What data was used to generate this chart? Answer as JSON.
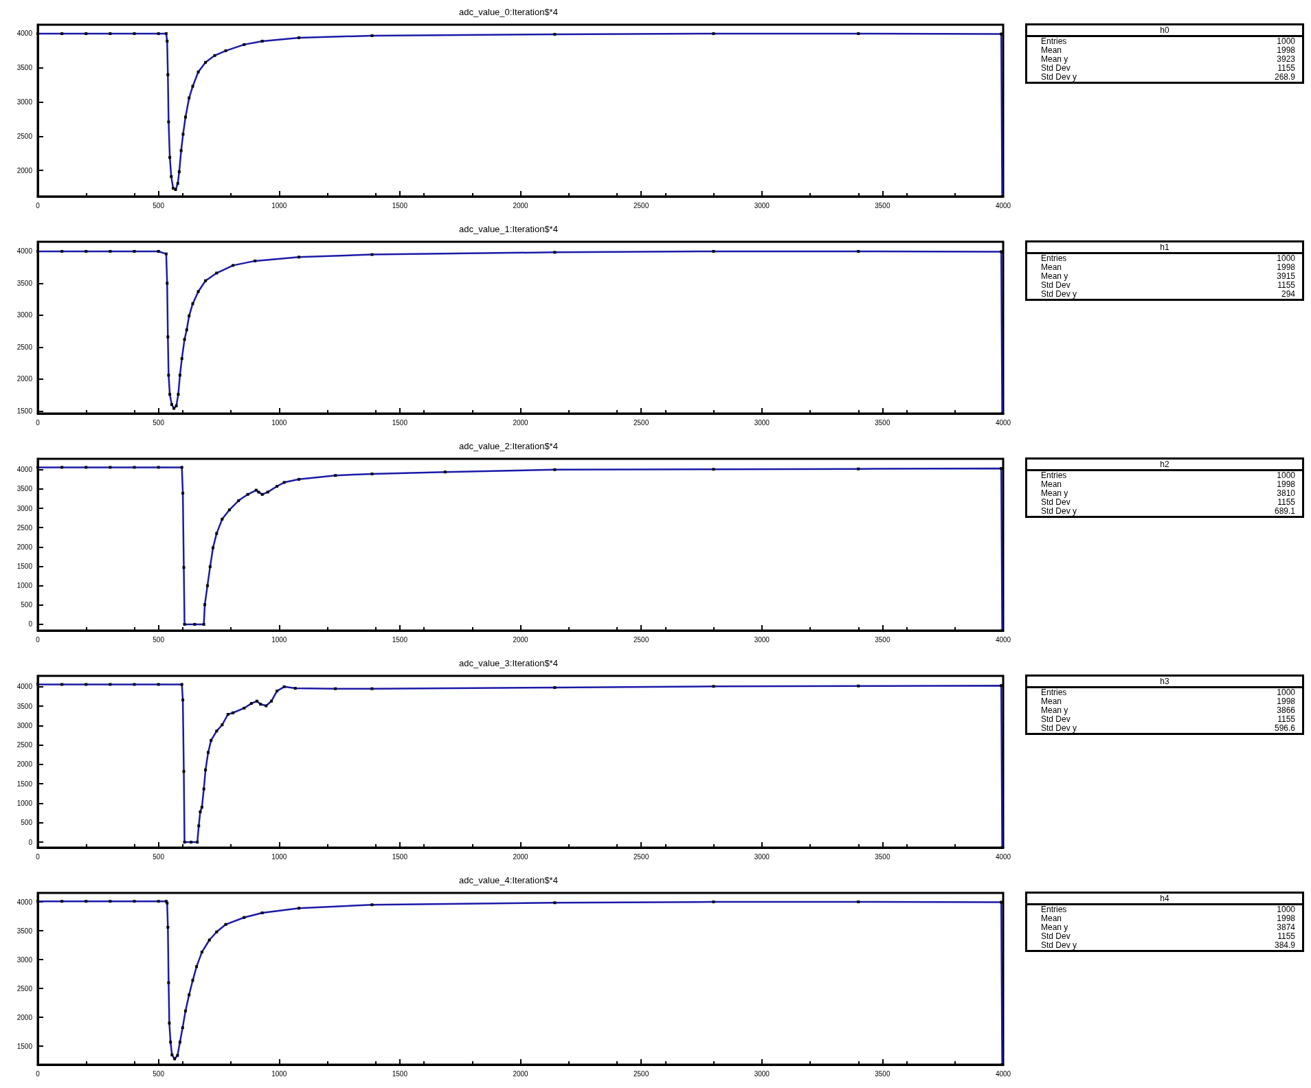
{
  "chart_data": [
    {
      "type": "line",
      "title": "adc_value_0:Iteration$*4",
      "xlim": [
        0,
        4000
      ],
      "xticks": [
        0,
        500,
        1000,
        1500,
        2000,
        2500,
        3000,
        3500,
        4000
      ],
      "ylim": [
        1620,
        4130
      ],
      "yticks": [
        2000,
        2500,
        3000,
        3500,
        4000
      ],
      "color": "#1a1aa8",
      "marker": "square",
      "line_style": "solid",
      "x": [
        0,
        100,
        200,
        300,
        400,
        500,
        532,
        536,
        539,
        542,
        547,
        553,
        561,
        571,
        580,
        586,
        594,
        602,
        612,
        627,
        642,
        665,
        695,
        733,
        779,
        855,
        930,
        1082,
        1385,
        2142,
        2800,
        3400,
        3992,
        3996
      ],
      "values": [
        4000,
        4000,
        4000,
        4000,
        4000,
        4000,
        4000,
        3890,
        3400,
        2710,
        2190,
        1910,
        1740,
        1720,
        1810,
        1980,
        2290,
        2530,
        2780,
        3060,
        3230,
        3440,
        3580,
        3680,
        3750,
        3840,
        3890,
        3940,
        3970,
        3990,
        4000,
        4000,
        3995,
        1620
      ],
      "annotations": [
        "h0",
        "Entries",
        "1000",
        "Mean",
        "1998",
        "Mean y",
        "3923",
        "Std Dev",
        "1155",
        "Std Dev y",
        "268.9"
      ]
    },
    {
      "type": "line",
      "title": "adc_value_1:Iteration$*4",
      "xlim": [
        0,
        4000
      ],
      "xticks": [
        0,
        500,
        1000,
        1500,
        2000,
        2500,
        3000,
        3500,
        4000
      ],
      "ylim": [
        1460,
        4150
      ],
      "yticks": [
        1500,
        2000,
        2500,
        3000,
        3500,
        4000
      ],
      "color": "#1a1aa8",
      "marker": "square",
      "line_style": "solid",
      "x": [
        0,
        100,
        200,
        300,
        400,
        500,
        532,
        536,
        539,
        542,
        547,
        555,
        564,
        574,
        582,
        589,
        597,
        608,
        617,
        627,
        642,
        665,
        695,
        741,
        809,
        900,
        1082,
        1385,
        2142,
        2800,
        3400,
        3992,
        3996
      ],
      "values": [
        4000,
        4000,
        4000,
        4000,
        4000,
        4000,
        3960,
        3500,
        2660,
        2060,
        1760,
        1600,
        1540,
        1580,
        1760,
        2060,
        2320,
        2620,
        2770,
        2990,
        3180,
        3370,
        3540,
        3660,
        3780,
        3850,
        3910,
        3950,
        3985,
        4000,
        4000,
        3995,
        1460
      ],
      "annotations": [
        "h1",
        "Entries",
        "1000",
        "Mean",
        "1998",
        "Mean y",
        "3915",
        "Std Dev",
        "1155",
        "Std Dev y",
        "294"
      ]
    },
    {
      "type": "line",
      "title": "adc_value_2:Iteration$*4",
      "xlim": [
        0,
        4000
      ],
      "xticks": [
        0,
        500,
        1000,
        1500,
        2000,
        2500,
        3000,
        3500,
        4000
      ],
      "ylim": [
        -160,
        4280
      ],
      "yticks": [
        0,
        500,
        1000,
        1500,
        2000,
        2500,
        3000,
        3500,
        4000
      ],
      "color": "#1a1aa8",
      "marker": "square",
      "line_style": "solid",
      "x": [
        0,
        100,
        200,
        300,
        400,
        500,
        597,
        601,
        605,
        608,
        650,
        688,
        692,
        703,
        714,
        726,
        741,
        764,
        794,
        832,
        870,
        905,
        915,
        930,
        953,
        991,
        1021,
        1082,
        1233,
        1385,
        1688,
        2142,
        2800,
        3400,
        3992,
        3996
      ],
      "values": [
        4060,
        4060,
        4060,
        4060,
        4060,
        4060,
        4060,
        3390,
        1470,
        0,
        0,
        0,
        510,
        1000,
        1490,
        1980,
        2350,
        2720,
        2960,
        3200,
        3360,
        3470,
        3420,
        3360,
        3420,
        3570,
        3670,
        3750,
        3850,
        3890,
        3940,
        4000,
        4010,
        4020,
        4030,
        -160
      ],
      "annotations": [
        "h2",
        "Entries",
        "1000",
        "Mean",
        "1998",
        "Mean y",
        "3810",
        "Std Dev",
        "1155",
        "Std Dev y",
        "689.1"
      ]
    },
    {
      "type": "line",
      "title": "adc_value_3:Iteration$*4",
      "xlim": [
        0,
        4000
      ],
      "xticks": [
        0,
        500,
        1000,
        1500,
        2000,
        2500,
        3000,
        3500,
        4000
      ],
      "ylim": [
        -140,
        4280
      ],
      "yticks": [
        0,
        500,
        1000,
        1500,
        2000,
        2500,
        3000,
        3500,
        4000
      ],
      "color": "#1a1aa8",
      "marker": "square",
      "line_style": "solid",
      "x": [
        0,
        100,
        200,
        300,
        400,
        500,
        597,
        601,
        605,
        608,
        635,
        661,
        667,
        673,
        680,
        688,
        695,
        706,
        718,
        741,
        764,
        788,
        809,
        855,
        885,
        908,
        923,
        946,
        968,
        991,
        1021,
        1067,
        1233,
        1385,
        2142,
        2800,
        3400,
        3992,
        3996
      ],
      "values": [
        4060,
        4060,
        4060,
        4060,
        4060,
        4060,
        4060,
        3660,
        1820,
        0,
        0,
        0,
        420,
        780,
        900,
        1370,
        1860,
        2310,
        2620,
        2860,
        3020,
        3290,
        3330,
        3450,
        3570,
        3630,
        3550,
        3510,
        3630,
        3890,
        4000,
        3960,
        3950,
        3950,
        3980,
        4010,
        4020,
        4030,
        -140
      ],
      "annotations": [
        "h3",
        "Entries",
        "1000",
        "Mean",
        "1998",
        "Mean y",
        "3866",
        "Std Dev",
        "1155",
        "Std Dev y",
        "596.6"
      ]
    },
    {
      "type": "line",
      "title": "adc_value_4:Iteration$*4",
      "xlim": [
        0,
        4000
      ],
      "xticks": [
        0,
        500,
        1000,
        1500,
        2000,
        2500,
        3000,
        3500,
        4000
      ],
      "ylim": [
        1180,
        4155
      ],
      "yticks": [
        1500,
        2000,
        2500,
        3000,
        3500,
        4000
      ],
      "color": "#1a1aa8",
      "marker": "square",
      "line_style": "solid",
      "x": [
        0,
        100,
        200,
        300,
        400,
        500,
        532,
        536,
        539,
        542,
        545,
        550,
        556,
        567,
        579,
        589,
        600,
        612,
        627,
        642,
        658,
        680,
        711,
        741,
        779,
        855,
        930,
        1082,
        1385,
        2142,
        2800,
        3400,
        3992,
        3996
      ],
      "values": [
        4010,
        4010,
        4010,
        4010,
        4010,
        4010,
        4010,
        3980,
        3560,
        2600,
        1900,
        1570,
        1350,
        1280,
        1340,
        1570,
        1820,
        2110,
        2390,
        2640,
        2880,
        3130,
        3340,
        3480,
        3610,
        3730,
        3810,
        3890,
        3950,
        3985,
        4000,
        4000,
        3995,
        1180
      ],
      "annotations": [
        "h4",
        "Entries",
        "1000",
        "Mean",
        "1998",
        "Mean y",
        "3874",
        "Std Dev",
        "1155",
        "Std Dev y",
        "384.9"
      ]
    }
  ]
}
